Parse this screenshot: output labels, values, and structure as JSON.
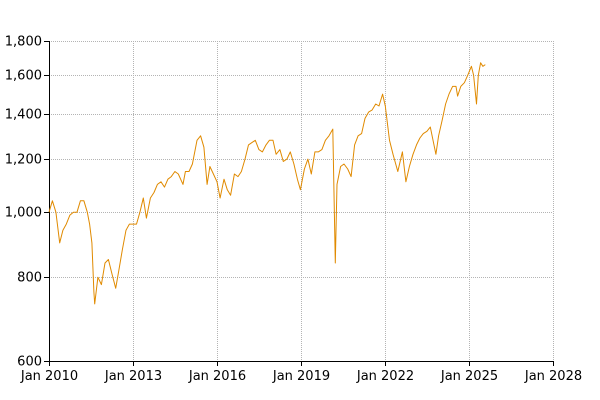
{
  "chart_data": {
    "type": "line",
    "title": "",
    "xlabel": "",
    "ylabel": "",
    "y_scale": "log",
    "grid": true,
    "legend": "none",
    "xlim": [
      "2010-01-01",
      "2028-01-01"
    ],
    "ylim": [
      600,
      1800
    ],
    "x_ticks": [
      "Jan 2010",
      "Jan 2013",
      "Jan 2016",
      "Jan 2019",
      "Jan 2022",
      "Jan 2025",
      "Jan 2028"
    ],
    "x_tick_dates": [
      "2010-01-01",
      "2013-01-01",
      "2016-01-01",
      "2019-01-01",
      "2022-01-01",
      "2025-01-01",
      "2028-01-01"
    ],
    "y_ticks": [
      "600",
      "800",
      "1,000",
      "1,200",
      "1,400",
      "1,600",
      "1,800"
    ],
    "y_tick_values": [
      600,
      800,
      1000,
      1200,
      1400,
      1600,
      1800
    ],
    "series": [
      {
        "color": "#e08a00",
        "x": [
          "2010-01-01",
          "2010-02-15",
          "2010-04-01",
          "2010-05-20",
          "2010-07-01",
          "2010-08-15",
          "2010-10-01",
          "2010-11-15",
          "2011-01-01",
          "2011-02-15",
          "2011-04-01",
          "2011-05-15",
          "2011-06-15",
          "2011-07-15",
          "2011-08-10",
          "2011-08-20",
          "2011-10-01",
          "2011-11-15",
          "2012-01-01",
          "2012-02-15",
          "2012-04-01",
          "2012-05-20",
          "2012-07-01",
          "2012-08-15",
          "2012-10-01",
          "2012-11-15",
          "2013-01-01",
          "2013-02-15",
          "2013-04-01",
          "2013-05-15",
          "2013-06-25",
          "2013-08-15",
          "2013-10-01",
          "2013-11-15",
          "2014-01-01",
          "2014-02-15",
          "2014-04-01",
          "2014-05-15",
          "2014-07-01",
          "2014-08-15",
          "2014-10-15",
          "2014-11-15",
          "2015-01-01",
          "2015-02-15",
          "2015-04-15",
          "2015-06-01",
          "2015-07-15",
          "2015-08-25",
          "2015-10-01",
          "2015-11-15",
          "2016-01-01",
          "2016-02-11",
          "2016-04-01",
          "2016-05-15",
          "2016-06-27",
          "2016-08-15",
          "2016-10-01",
          "2016-11-15",
          "2017-01-01",
          "2017-02-15",
          "2017-04-01",
          "2017-05-15",
          "2017-07-01",
          "2017-08-15",
          "2017-10-01",
          "2017-11-15",
          "2018-01-01",
          "2018-02-10",
          "2018-04-01",
          "2018-05-15",
          "2018-07-01",
          "2018-08-15",
          "2018-10-01",
          "2018-11-15",
          "2018-12-24",
          "2019-02-15",
          "2019-04-01",
          "2019-05-15",
          "2019-07-01",
          "2019-08-15",
          "2019-10-01",
          "2019-11-15",
          "2020-01-01",
          "2020-02-20",
          "2020-03-23",
          "2020-04-15",
          "2020-06-01",
          "2020-07-15",
          "2020-09-01",
          "2020-10-15",
          "2020-11-30",
          "2021-01-15",
          "2021-03-01",
          "2021-04-15",
          "2021-06-01",
          "2021-07-15",
          "2021-09-01",
          "2021-10-15",
          "2021-12-01",
          "2022-01-05",
          "2022-03-01",
          "2022-04-15",
          "2022-06-16",
          "2022-08-15",
          "2022-09-30",
          "2022-11-15",
          "2023-01-01",
          "2023-02-15",
          "2023-04-01",
          "2023-05-15",
          "2023-07-01",
          "2023-08-15",
          "2023-10-27",
          "2023-12-01",
          "2024-01-15",
          "2024-03-01",
          "2024-04-15",
          "2024-06-01",
          "2024-07-15",
          "2024-08-05",
          "2024-09-15",
          "2024-11-01",
          "2024-12-15",
          "2025-01-31",
          "2025-03-01",
          "2025-04-08",
          "2025-05-01",
          "2025-06-01",
          "2025-07-01",
          "2025-08-01"
        ],
        "y": [
          1000,
          1040,
          1000,
          900,
          940,
          960,
          990,
          1000,
          1000,
          1040,
          1040,
          1000,
          960,
          900,
          760,
          730,
          800,
          780,
          840,
          850,
          810,
          770,
          820,
          880,
          940,
          960,
          960,
          960,
          1000,
          1050,
          980,
          1050,
          1070,
          1100,
          1110,
          1090,
          1120,
          1130,
          1150,
          1140,
          1100,
          1150,
          1150,
          1180,
          1280,
          1300,
          1250,
          1100,
          1170,
          1140,
          1110,
          1050,
          1120,
          1080,
          1060,
          1140,
          1130,
          1150,
          1200,
          1260,
          1270,
          1280,
          1240,
          1230,
          1260,
          1280,
          1280,
          1220,
          1240,
          1190,
          1200,
          1230,
          1180,
          1120,
          1080,
          1160,
          1200,
          1140,
          1230,
          1230,
          1240,
          1280,
          1300,
          1330,
          840,
          1100,
          1170,
          1180,
          1160,
          1130,
          1260,
          1300,
          1310,
          1380,
          1410,
          1420,
          1450,
          1440,
          1500,
          1440,
          1280,
          1220,
          1150,
          1230,
          1110,
          1170,
          1220,
          1260,
          1290,
          1310,
          1320,
          1340,
          1220,
          1300,
          1370,
          1450,
          1500,
          1540,
          1540,
          1490,
          1540,
          1560,
          1600,
          1650,
          1600,
          1450,
          1600,
          1670,
          1650,
          1660
        ]
      }
    ]
  }
}
